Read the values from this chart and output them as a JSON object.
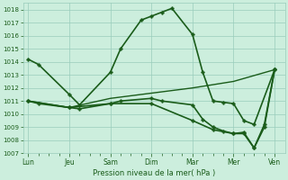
{
  "xlabel": "Pression niveau de la mer( hPa )",
  "bg_color": "#cceedd",
  "grid_color": "#99ccbb",
  "line_color": "#1a5c1a",
  "ylim": [
    1007,
    1018.5
  ],
  "yticks": [
    1007,
    1008,
    1009,
    1010,
    1011,
    1012,
    1013,
    1014,
    1015,
    1016,
    1017,
    1018
  ],
  "day_labels": [
    "Lun",
    "Jeu",
    "Sam",
    "Dim",
    "Mar",
    "Mer",
    "Ven"
  ],
  "day_positions": [
    0,
    8,
    16,
    24,
    32,
    40,
    48
  ],
  "xlim": [
    -1,
    50
  ],
  "lines": [
    {
      "x": [
        0,
        2,
        8,
        10,
        16,
        18,
        22,
        24,
        26,
        28,
        32,
        34,
        36,
        38,
        40,
        42,
        44,
        48
      ],
      "y": [
        1014.2,
        1013.8,
        1011.5,
        1010.7,
        1013.2,
        1015.0,
        1017.2,
        1017.5,
        1017.8,
        1018.1,
        1016.1,
        1013.2,
        1011.0,
        1010.9,
        1010.8,
        1009.5,
        1009.2,
        1013.4
      ],
      "marker": "P",
      "markersize": 2.5,
      "linewidth": 1.2
    },
    {
      "x": [
        0,
        8,
        16,
        24,
        32,
        40,
        48
      ],
      "y": [
        1011.0,
        1010.5,
        1011.2,
        1011.6,
        1012.0,
        1012.5,
        1013.4
      ],
      "marker": null,
      "markersize": 0,
      "linewidth": 1.0
    },
    {
      "x": [
        0,
        2,
        8,
        10,
        16,
        18,
        24,
        26,
        32,
        34,
        36,
        38,
        40,
        42,
        44,
        46,
        48
      ],
      "y": [
        1011.0,
        1010.8,
        1010.5,
        1010.4,
        1010.8,
        1011.0,
        1011.2,
        1011.0,
        1010.7,
        1009.6,
        1009.0,
        1008.7,
        1008.5,
        1008.5,
        1007.4,
        1009.0,
        1013.4
      ],
      "marker": "P",
      "markersize": 2.5,
      "linewidth": 1.2
    },
    {
      "x": [
        0,
        8,
        16,
        24,
        32,
        36,
        40,
        42,
        44,
        46,
        48
      ],
      "y": [
        1011.0,
        1010.5,
        1010.8,
        1010.8,
        1009.5,
        1008.8,
        1008.5,
        1008.6,
        1007.4,
        1009.2,
        1013.4
      ],
      "marker": "P",
      "markersize": 2.5,
      "linewidth": 1.2
    }
  ]
}
